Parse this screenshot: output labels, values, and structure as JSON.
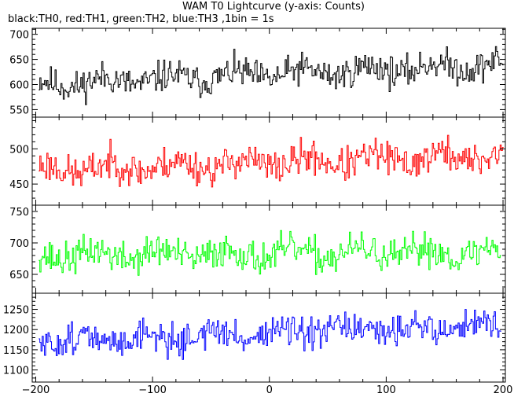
{
  "chart_data": {
    "type": "line",
    "title": "WAM T0 Lightcurve (y-axis: Counts)",
    "subtitle": "black:TH0, red:TH1, green:TH2, blue:TH3 ,1bin = 1s",
    "xlim": [
      -203,
      202
    ],
    "xticks": [
      -200,
      -100,
      0,
      100,
      200
    ],
    "x_step": 1,
    "panels": [
      {
        "name": "TH0",
        "color": "#000000",
        "ylim": [
          535,
          712
        ],
        "yticks": [
          550,
          600,
          650,
          700
        ],
        "trend_start": 600,
        "trend_end": 640,
        "noise": 26,
        "seed": 11,
        "x_start": -197,
        "x_end": 200
      },
      {
        "name": "TH1",
        "color": "#ff0000",
        "ylim": [
          420,
          545
        ],
        "yticks": [
          450,
          500
        ],
        "trend_start": 470,
        "trend_end": 490,
        "noise": 20,
        "seed": 23,
        "x_start": -197,
        "x_end": 200
      },
      {
        "name": "TH2",
        "color": "#00ff00",
        "ylim": [
          620,
          760
        ],
        "yticks": [
          650,
          700,
          750
        ],
        "trend_start": 680,
        "trend_end": 685,
        "noise": 22,
        "seed": 37,
        "x_start": -197,
        "x_end": 198
      },
      {
        "name": "TH3",
        "color": "#0000ff",
        "ylim": [
          1070,
          1290
        ],
        "yticks": [
          1100,
          1150,
          1200,
          1250
        ],
        "trend_start": 1170,
        "trend_end": 1210,
        "noise": 32,
        "seed": 51,
        "x_start": -197,
        "x_end": 198
      }
    ]
  }
}
